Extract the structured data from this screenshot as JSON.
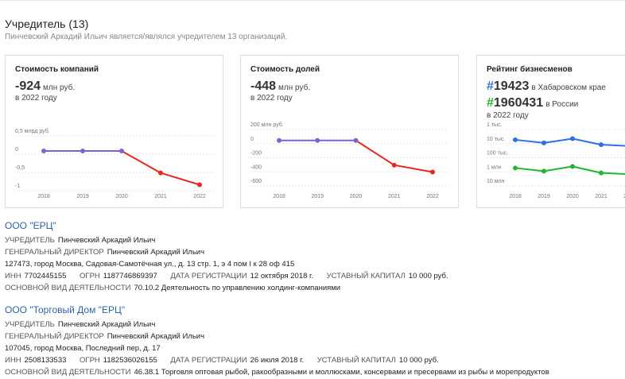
{
  "section": {
    "title": "Учредитель (13)",
    "subtitle": "Пинчевский Аркадий Ильич является/являлся учредителем 13 организаций."
  },
  "cards": [
    {
      "title": "Стоимость компаний",
      "value": "-924",
      "unit": "млн руб.",
      "year_note": "в 2022 году"
    },
    {
      "title": "Стоимость долей",
      "value": "-448",
      "unit": "млн руб.",
      "year_note": "в 2022 году"
    },
    {
      "title": "Рейтинг бизнесменов",
      "rank_regional": "19423",
      "rank_regional_label": "в Хабаровском крае",
      "rank_national": "1960431",
      "rank_national_label": "в России",
      "year_note": "в 2022 году"
    }
  ],
  "chart_data": [
    {
      "type": "line",
      "x": [
        "2018",
        "2019",
        "2020",
        "2021",
        "2022"
      ],
      "y_ticks": [
        "0,5 млрд руб.",
        "0",
        "-0,5",
        "-1"
      ],
      "ylim": [
        -1.0,
        0.5
      ],
      "series": [
        {
          "values": [
            0.0,
            0.0,
            0.0,
            -0.6,
            -0.924
          ]
        }
      ],
      "colors": {
        "stable": "#7b63d6",
        "decline": "#e8281f"
      }
    },
    {
      "type": "line",
      "x": [
        "2018",
        "2019",
        "2020",
        "2021",
        "2022"
      ],
      "y_ticks": [
        "200 млн руб.",
        "0",
        "-200",
        "-400",
        "-600"
      ],
      "ylim": [
        -600,
        200
      ],
      "series": [
        {
          "values": [
            0,
            0,
            0,
            -350,
            -448
          ]
        }
      ],
      "colors": {
        "stable": "#7b63d6",
        "decline": "#e8281f"
      }
    },
    {
      "type": "line",
      "log_scale": true,
      "x": [
        "2018",
        "2019",
        "2020",
        "2021",
        "2022"
      ],
      "y_ticks": [
        "1 тыс.",
        "10 тыс.",
        "100 тыс.",
        "1 млн",
        "10 млн"
      ],
      "ylim": [
        1000,
        10000000
      ],
      "series": [
        {
          "values": [
            9000,
            15000,
            7500,
            20000,
            25000
          ],
          "color": "#2f6fe0"
        },
        {
          "values": [
            900000,
            1500000,
            700000,
            2000000,
            2500000
          ],
          "color": "#22b531"
        }
      ]
    }
  ],
  "orgs": [
    {
      "name": "ООО \"ЕРЦ\"",
      "founder_label": "УЧРЕДИТЕЛЬ",
      "founder": "Пинчевский Аркадий Ильич",
      "director_label": "ГЕНЕРАЛЬНЫЙ ДИРЕКТОР",
      "director": "Пинчевский Аркадий Ильич",
      "address": "127473, город Москва, Садовая-Самотёчная ул., д. 13 стр. 1, э 4 пом I к 28 оф 415",
      "inn_label": "ИНН",
      "inn": "7702445155",
      "ogrn_label": "ОГРН",
      "ogrn": "1187746869397",
      "reg_label": "ДАТА РЕГИСТРАЦИИ",
      "reg": "12 октября 2018 г.",
      "capital_label": "УСТАВНЫЙ КАПИТАЛ",
      "capital": "10 000 руб.",
      "activity_label": "ОСНОВНОЙ ВИД ДЕЯТЕЛЬНОСТИ",
      "activity": "70.10.2 Деятельность по управлению холдинг-компаниями"
    },
    {
      "name": "ООО \"Торговый Дом \"ЕРЦ\"",
      "founder_label": "УЧРЕДИТЕЛЬ",
      "founder": "Пинчевский Аркадий Ильич",
      "director_label": "ГЕНЕРАЛЬНЫЙ ДИРЕКТОР",
      "director": "Пинчевский Аркадий Ильич",
      "address": "107045, город Москва, Последний пер, д. 17",
      "inn_label": "ИНН",
      "inn": "2508133533",
      "ogrn_label": "ОГРН",
      "ogrn": "1182536026155",
      "reg_label": "ДАТА РЕГИСТРАЦИИ",
      "reg": "26 июля 2018 г.",
      "capital_label": "УСТАВНЫЙ КАПИТАЛ",
      "capital": "10 000 руб.",
      "activity_label": "ОСНОВНОЙ ВИД ДЕЯТЕЛЬНОСТИ",
      "activity": "46.38.1 Торговля оптовая рыбой, ракообразными и моллюсками, консервами и пресервами из рыбы и морепродуктов"
    }
  ]
}
